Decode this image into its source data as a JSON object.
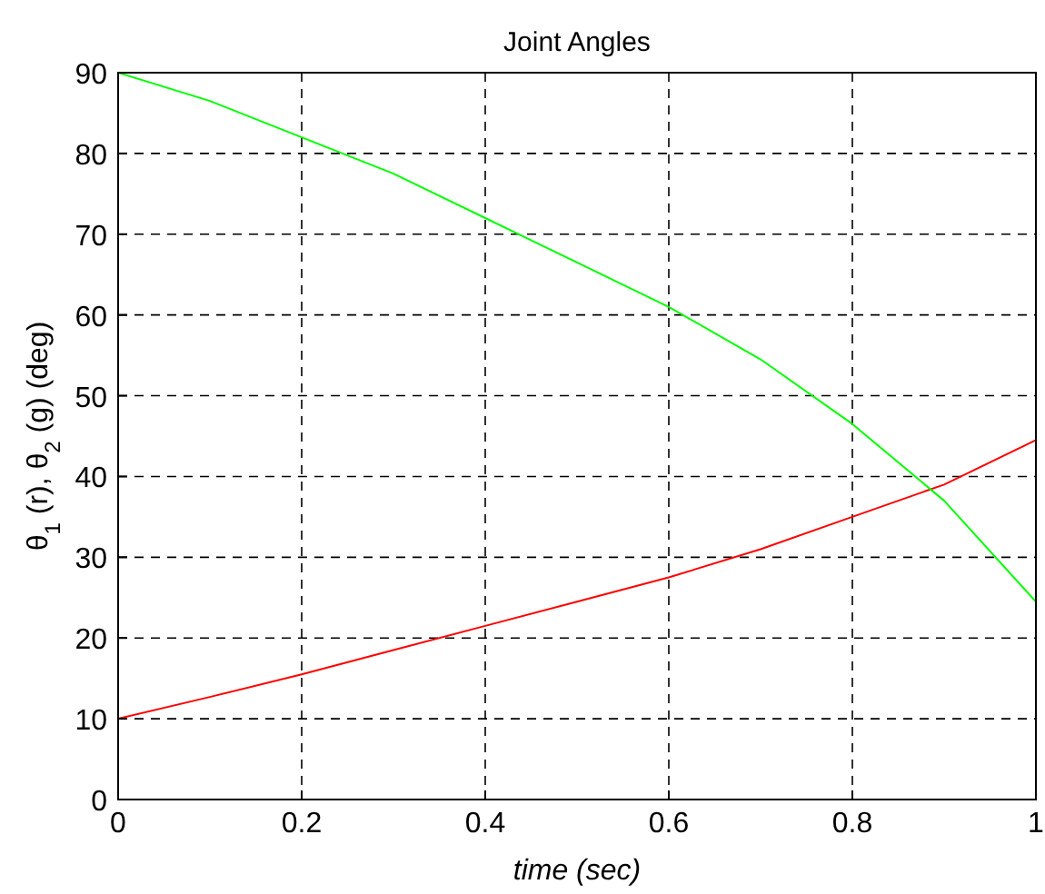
{
  "chart_data": {
    "type": "line",
    "title": "Joint Angles",
    "xlabel": "time (sec)",
    "ylabel": "θ$_{1}$ (r), θ$_{2}$ (g) (deg)",
    "xlim": [
      0,
      1
    ],
    "ylim": [
      0,
      90
    ],
    "xticks": [
      0,
      0.2,
      0.4,
      0.6,
      0.8,
      1
    ],
    "yticks": [
      0,
      10,
      20,
      30,
      40,
      50,
      60,
      70,
      80,
      90
    ],
    "grid": true,
    "line_style": "solid",
    "marker": "none",
    "x": [
      0,
      0.1,
      0.2,
      0.3,
      0.4,
      0.5,
      0.6,
      0.7,
      0.8,
      0.9,
      1
    ],
    "series": [
      {
        "color": "#ff0000",
        "values": [
          10,
          12.7,
          15.5,
          18.5,
          21.5,
          24.5,
          27.5,
          31,
          35,
          39,
          44.5
        ]
      },
      {
        "color": "#00ff00",
        "values": [
          90,
          86.5,
          82,
          77.5,
          72,
          66.5,
          61,
          54.5,
          46.5,
          37,
          24.5
        ]
      }
    ]
  }
}
